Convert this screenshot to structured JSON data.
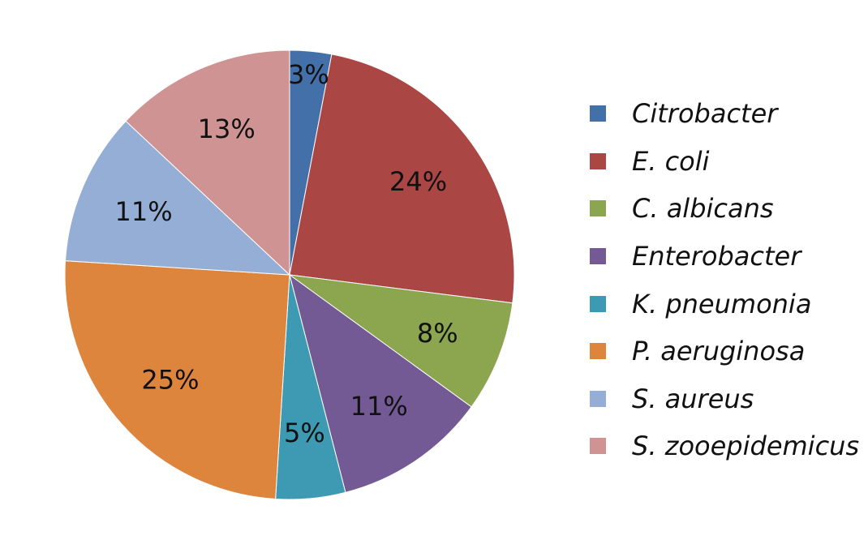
{
  "chart_data": {
    "type": "pie",
    "title": "",
    "legend_position": "right",
    "slices": [
      {
        "name": "Citrobacter",
        "value": 3,
        "label": "3%",
        "color": "#4470AA"
      },
      {
        "name": "E. coli",
        "value": 24,
        "label": "24%",
        "color": "#AA4644"
      },
      {
        "name": "C. albicans",
        "value": 8,
        "label": "8%",
        "color": "#8BA64F"
      },
      {
        "name": "Enterobacter",
        "value": 11,
        "label": "11%",
        "color": "#745A94"
      },
      {
        "name": "K. pneumonia",
        "value": 5,
        "label": "5%",
        "color": "#3D9AB2"
      },
      {
        "name": "P. aeruginosa",
        "value": 25,
        "label": "25%",
        "color": "#DD853D"
      },
      {
        "name": "S. aureus",
        "value": 11,
        "label": "11%",
        "color": "#95AED5"
      },
      {
        "name": "S. zooepidemicus",
        "value": 13,
        "label": "13%",
        "color": "#D09393"
      }
    ]
  }
}
